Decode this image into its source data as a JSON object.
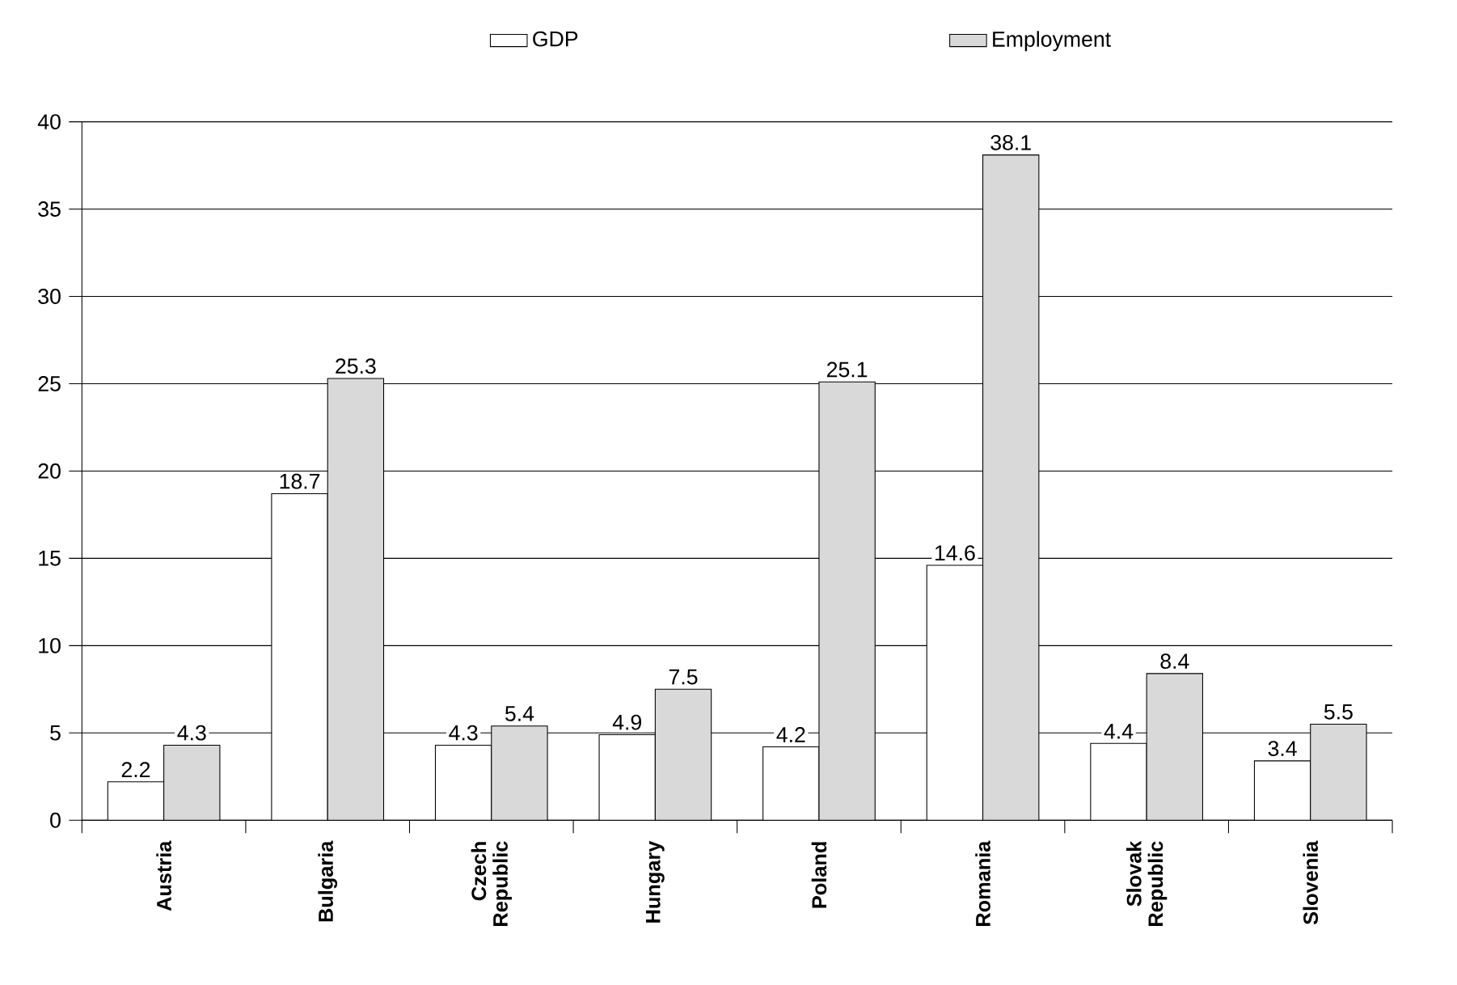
{
  "chart_data": {
    "type": "bar",
    "categories": [
      "Austria",
      "Bulgaria",
      "Czech Republic",
      "Hungary",
      "Poland",
      "Romania",
      "Slovak Republic",
      "Slovenia"
    ],
    "series": [
      {
        "name": "GDP",
        "color": "#ffffff",
        "values": [
          2.2,
          18.7,
          4.3,
          4.9,
          4.2,
          14.6,
          4.4,
          3.4
        ]
      },
      {
        "name": "Employment",
        "color": "#d9d9d9",
        "values": [
          4.3,
          25.3,
          5.4,
          7.5,
          25.1,
          38.1,
          8.4,
          5.5
        ]
      }
    ],
    "ylim": [
      0,
      40
    ],
    "yticks": [
      0,
      5,
      10,
      15,
      20,
      25,
      30,
      35,
      40
    ],
    "grid": "y",
    "legend": "top",
    "data_labels": true
  }
}
